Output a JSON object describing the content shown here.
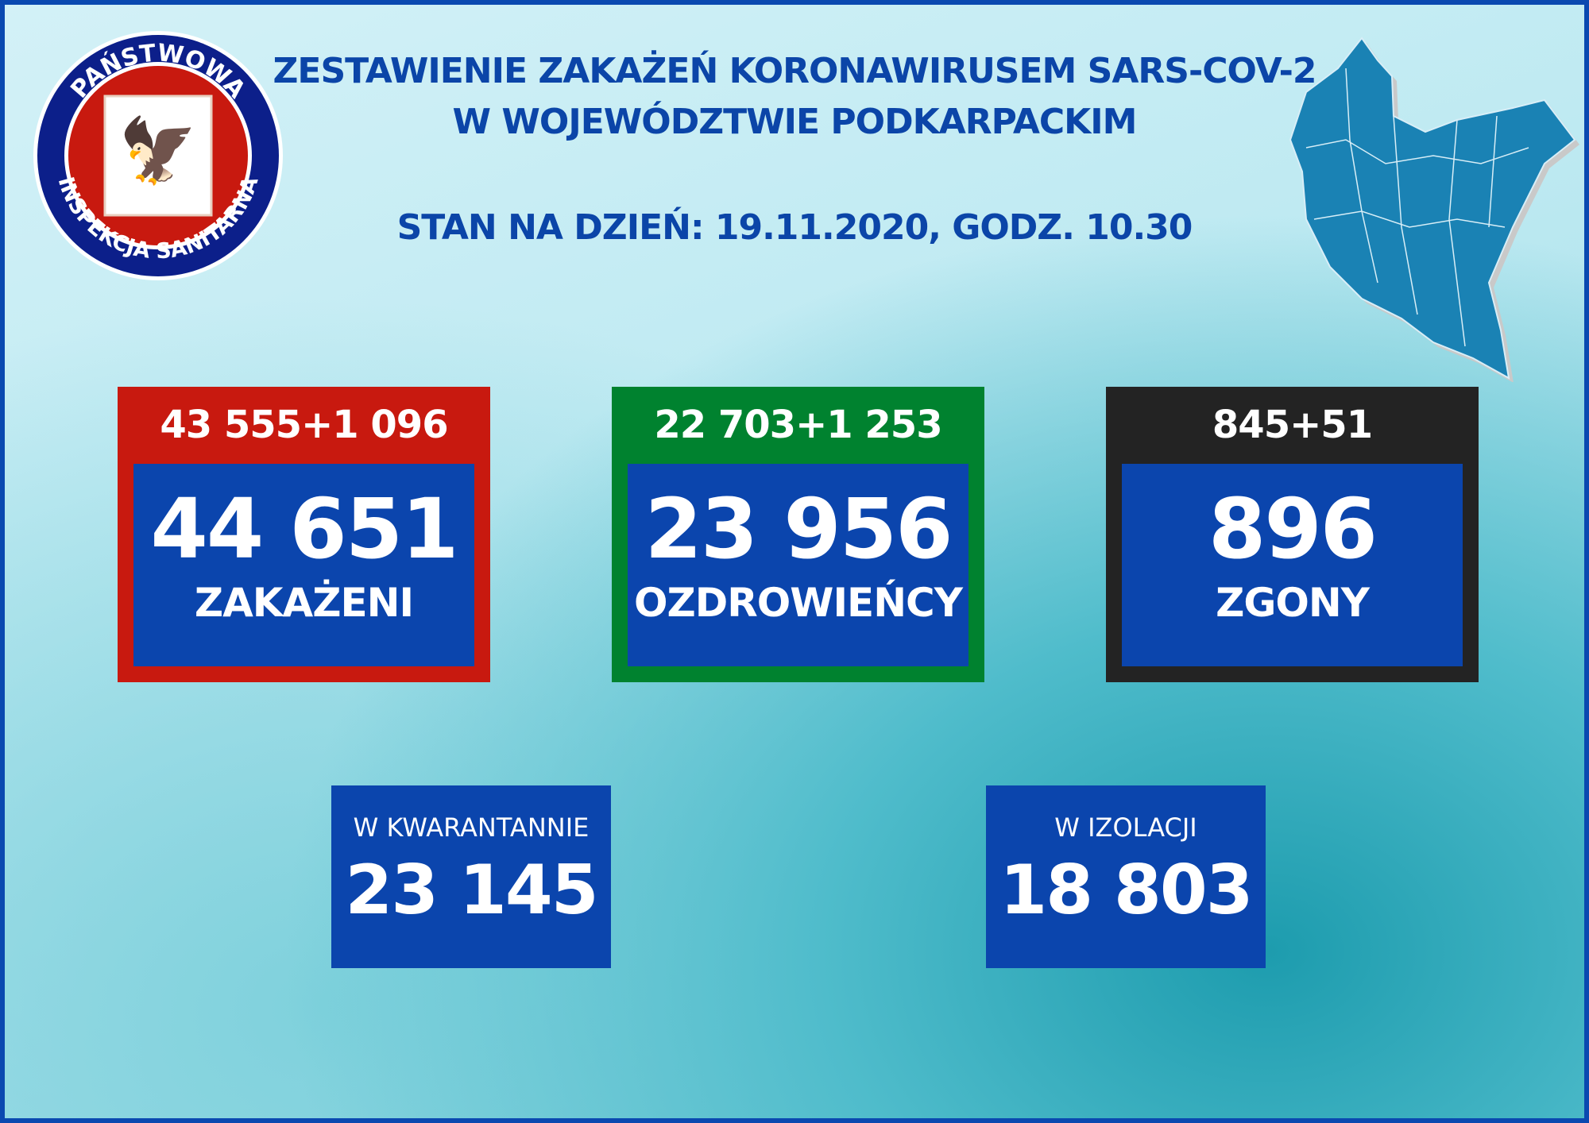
{
  "header": {
    "title_line1": "ZESTAWIENIE ZAKAŻEŃ KORONAWIRUSEM SARS-COV-2",
    "title_line2": "W WOJEWÓDZTWIE PODKARPACKIM",
    "date_line": "STAN NA DZIEŃ: 19.11.2020, GODZ. 10.30"
  },
  "logo": {
    "text_top": "PAŃSTWOWA",
    "text_bottom": "INSPEKCJA SANITARNA"
  },
  "stats": [
    {
      "top": "43 555+1 096",
      "value": "44 651",
      "label": "ZAKAŻENI",
      "color": "#c8190f"
    },
    {
      "top": "22 703+1 253",
      "value": "23 956",
      "label": "OZDROWIEŃCY",
      "color": "#00822f"
    },
    {
      "top": "845+51",
      "value": "896",
      "label": "ZGONY",
      "color": "#232323"
    }
  ],
  "quarantine": {
    "label": "W KWARANTANNIE",
    "value": "23 145"
  },
  "isolation": {
    "label": "W IZOLACJI",
    "value": "18 803"
  },
  "colors": {
    "blue": "#0b45ad",
    "map": "#1a82b4"
  }
}
